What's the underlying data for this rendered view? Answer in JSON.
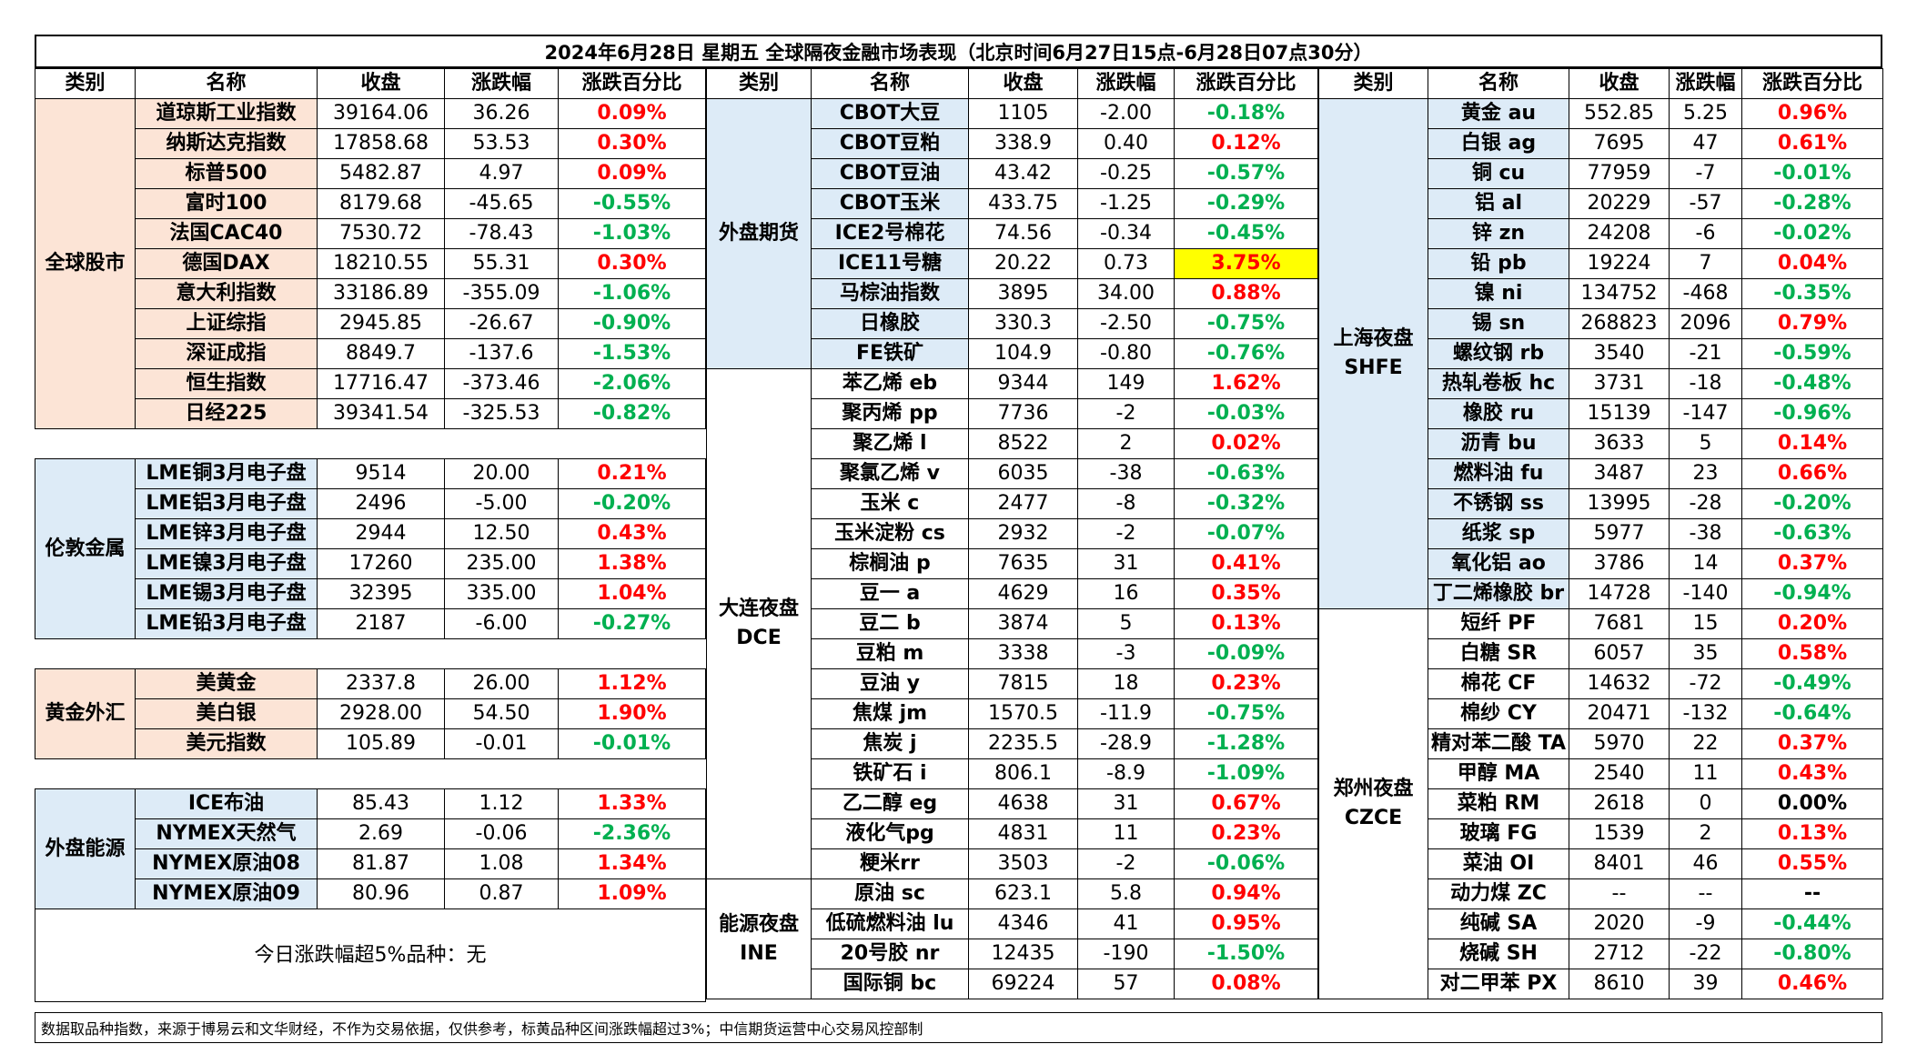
{
  "title": "2024年6月28日 星期五 全球隔夜金融市场表现（北京时间6月27日15点-6月28日07点30分）",
  "headers": [
    "类别",
    "名称",
    "收盘",
    "涨跌幅",
    "涨跌百分比"
  ],
  "footer": "数据取品种指数，来源于博易云和文华财经，不作为交易依据，仅供参考，标黄品种区间涨跌幅超过3%；中信期货运营中心交易风控部制",
  "note": "今日涨跌幅超5%品种：无",
  "left": [
    {
      "cat": "全球股市",
      "rows": [
        [
          "道琼斯工业指数",
          "39164.06",
          "36.26",
          "0.09%"
        ],
        [
          "纳斯达克指数",
          "17858.68",
          "53.53",
          "0.30%"
        ],
        [
          "标普500",
          "5482.87",
          "4.97",
          "0.09%"
        ],
        [
          "富时100",
          "8179.68",
          "-45.65",
          "-0.55%"
        ],
        [
          "法国CAC40",
          "7530.72",
          "-78.43",
          "-1.03%"
        ],
        [
          "德国DAX",
          "18210.55",
          "55.31",
          "0.30%"
        ],
        [
          "意大利指数",
          "33186.89",
          "-355.09",
          "-1.06%"
        ],
        [
          "上证综指",
          "2945.85",
          "-26.67",
          "-0.90%"
        ],
        [
          "深证成指",
          "8849.7",
          "-137.6",
          "-1.53%"
        ],
        [
          "恒生指数",
          "17716.47",
          "-373.46",
          "-2.06%"
        ],
        [
          "日经225",
          "39341.54",
          "-325.53",
          "-0.82%"
        ]
      ]
    },
    {
      "cat": "伦敦金属",
      "rows": [
        [
          "LME铜3月电子盘",
          "9514",
          "20.00",
          "0.21%"
        ],
        [
          "LME铝3月电子盘",
          "2496",
          "-5.00",
          "-0.20%"
        ],
        [
          "LME锌3月电子盘",
          "2944",
          "12.50",
          "0.43%"
        ],
        [
          "LME镍3月电子盘",
          "17260",
          "235.00",
          "1.38%"
        ],
        [
          "LME锡3月电子盘",
          "32395",
          "335.00",
          "1.04%"
        ],
        [
          "LME铅3月电子盘",
          "2187",
          "-6.00",
          "-0.27%"
        ]
      ]
    },
    {
      "cat": "黄金外汇",
      "rows": [
        [
          "美黄金",
          "2337.8",
          "26.00",
          "1.12%"
        ],
        [
          "美白银",
          "2928.00",
          "54.50",
          "1.90%"
        ],
        [
          "美元指数",
          "105.89",
          "-0.01",
          "-0.01%"
        ]
      ]
    },
    {
      "cat": "外盘能源",
      "rows": [
        [
          "ICE布油",
          "85.43",
          "1.12",
          "1.33%"
        ],
        [
          "NYMEX天然气",
          "2.69",
          "-0.06",
          "-2.36%"
        ],
        [
          "NYMEX原油08",
          "81.87",
          "1.08",
          "1.34%"
        ],
        [
          "NYMEX原油09",
          "80.96",
          "0.87",
          "1.09%"
        ]
      ]
    }
  ],
  "middle": [
    {
      "cat": "外盘期货",
      "rows": [
        [
          "CBOT大豆",
          "1105",
          "-2.00",
          "-0.18%"
        ],
        [
          "CBOT豆粕",
          "338.9",
          "0.40",
          "0.12%"
        ],
        [
          "CBOT豆油",
          "43.42",
          "-0.25",
          "-0.57%"
        ],
        [
          "CBOT玉米",
          "433.75",
          "-1.25",
          "-0.29%"
        ],
        [
          "ICE2号棉花",
          "74.56",
          "-0.34",
          "-0.45%"
        ],
        [
          "ICE11号糖",
          "20.22",
          "0.73",
          "3.75%"
        ],
        [
          "马棕油指数",
          "3895",
          "34.00",
          "0.88%"
        ],
        [
          "日橡胶",
          "330.3",
          "-2.50",
          "-0.75%"
        ],
        [
          "FE铁矿",
          "104.9",
          "-0.80",
          "-0.76%"
        ]
      ]
    },
    {
      "cat": "大连夜盘\nDCE",
      "rows": [
        [
          "苯乙烯 eb",
          "9344",
          "149",
          "1.62%"
        ],
        [
          "聚丙烯 pp",
          "7736",
          "-2",
          "-0.03%"
        ],
        [
          "聚乙烯 l",
          "8522",
          "2",
          "0.02%"
        ],
        [
          "聚氯乙烯 v",
          "6035",
          "-38",
          "-0.63%"
        ],
        [
          "玉米 c",
          "2477",
          "-8",
          "-0.32%"
        ],
        [
          "玉米淀粉 cs",
          "2932",
          "-2",
          "-0.07%"
        ],
        [
          "棕榈油 p",
          "7635",
          "31",
          "0.41%"
        ],
        [
          "豆一 a",
          "4629",
          "16",
          "0.35%"
        ],
        [
          "豆二 b",
          "3874",
          "5",
          "0.13%"
        ],
        [
          "豆粕 m",
          "3338",
          "-3",
          "-0.09%"
        ],
        [
          "豆油 y",
          "7815",
          "18",
          "0.23%"
        ],
        [
          "焦煤 jm",
          "1570.5",
          "-11.9",
          "-0.75%"
        ],
        [
          "焦炭 j",
          "2235.5",
          "-28.9",
          "-1.28%"
        ],
        [
          "铁矿石 i",
          "806.1",
          "-8.9",
          "-1.09%"
        ],
        [
          "乙二醇 eg",
          "4638",
          "31",
          "0.67%"
        ],
        [
          "液化气pg",
          "4831",
          "11",
          "0.23%"
        ],
        [
          "粳米rr",
          "3503",
          "-2",
          "-0.06%"
        ]
      ]
    },
    {
      "cat": "能源夜盘\nINE",
      "rows": [
        [
          "原油 sc",
          "623.1",
          "5.8",
          "0.94%"
        ],
        [
          "低硫燃料油 lu",
          "4346",
          "41",
          "0.95%"
        ],
        [
          "20号胶 nr",
          "12435",
          "-190",
          "-1.50%"
        ],
        [
          "国际铜 bc",
          "69224",
          "57",
          "0.08%"
        ]
      ]
    }
  ],
  "right": [
    {
      "cat": "上海夜盘\nSHFE",
      "rows": [
        [
          "黄金 au",
          "552.85",
          "5.25",
          "0.96%"
        ],
        [
          "白银 ag",
          "7695",
          "47",
          "0.61%"
        ],
        [
          "铜 cu",
          "77959",
          "-7",
          "-0.01%"
        ],
        [
          "铝 al",
          "20229",
          "-57",
          "-0.28%"
        ],
        [
          "锌 zn",
          "24208",
          "-6",
          "-0.02%"
        ],
        [
          "铅 pb",
          "19224",
          "7",
          "0.04%"
        ],
        [
          "镍 ni",
          "134752",
          "-468",
          "-0.35%"
        ],
        [
          "锡 sn",
          "268823",
          "2096",
          "0.79%"
        ],
        [
          "螺纹钢 rb",
          "3540",
          "-21",
          "-0.59%"
        ],
        [
          "热轧卷板 hc",
          "3731",
          "-18",
          "-0.48%"
        ],
        [
          "橡胶 ru",
          "15139",
          "-147",
          "-0.96%"
        ],
        [
          "沥青 bu",
          "3633",
          "5",
          "0.14%"
        ],
        [
          "燃料油 fu",
          "3487",
          "23",
          "0.66%"
        ],
        [
          "不锈钢 ss",
          "13995",
          "-28",
          "-0.20%"
        ],
        [
          "纸浆 sp",
          "5977",
          "-38",
          "-0.63%"
        ],
        [
          "氧化铝 ao",
          "3786",
          "14",
          "0.37%"
        ],
        [
          "丁二烯橡胶 br",
          "14728",
          "-140",
          "-0.94%"
        ]
      ]
    },
    {
      "cat": "郑州夜盘\nCZCE",
      "rows": [
        [
          "短纤 PF",
          "7681",
          "15",
          "0.20%"
        ],
        [
          "白糖 SR",
          "6057",
          "35",
          "0.58%"
        ],
        [
          "棉花 CF",
          "14632",
          "-72",
          "-0.49%"
        ],
        [
          "棉纱 CY",
          "20471",
          "-132",
          "-0.64%"
        ],
        [
          "精对苯二酸 TA",
          "5970",
          "22",
          "0.37%"
        ],
        [
          "甲醇 MA",
          "2540",
          "11",
          "0.43%"
        ],
        [
          "菜粕 RM",
          "2618",
          "0",
          "0.00%"
        ],
        [
          "玻璃 FG",
          "1539",
          "2",
          "0.13%"
        ],
        [
          "菜油 OI",
          "8401",
          "46",
          "0.55%"
        ],
        [
          "动力煤 ZC",
          "--",
          "--",
          "--"
        ],
        [
          "纯碱 SA",
          "2020",
          "-9",
          "-0.44%"
        ],
        [
          "烧碱 SH",
          "2712",
          "-22",
          "-0.80%"
        ],
        [
          "对二甲苯 PX",
          "8610",
          "39",
          "0.46%"
        ]
      ]
    }
  ],
  "colors": {
    "up": "#ff0000",
    "down": "#00b050",
    "highlight": "#ffff00",
    "orange_fill": "#fce4d6",
    "blue_fill": "#ddebf7",
    "green_fill": "#e2efda"
  }
}
